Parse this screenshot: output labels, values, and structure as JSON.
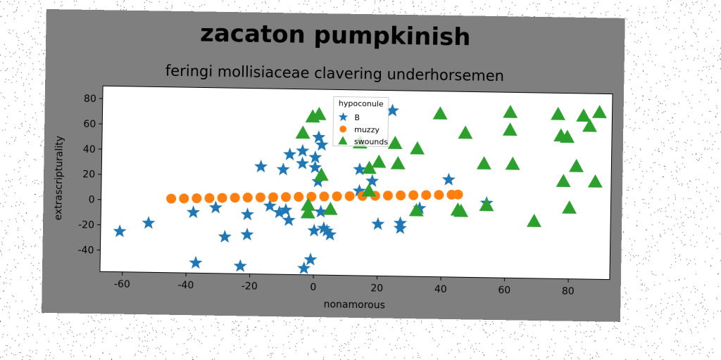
{
  "chart_data": {
    "type": "scatter",
    "title": "zacaton pumpkinish",
    "subtitle": "feringi mollisiaceae clavering underhorsemen",
    "xlabel": "nonamorous",
    "ylabel": "extrascripturality",
    "xlim": [
      -67,
      93
    ],
    "ylim": [
      -57,
      90
    ],
    "xticks": [
      "-60",
      "-40",
      "-20",
      "0",
      "20",
      "40",
      "60",
      "80"
    ],
    "yticks": [
      "-40",
      "-20",
      "0",
      "20",
      "40",
      "60",
      "80"
    ],
    "xtick_values": [
      -60,
      -40,
      -20,
      0,
      20,
      40,
      60,
      80
    ],
    "ytick_values": [
      -40,
      -20,
      0,
      20,
      40,
      60,
      80
    ],
    "legend": {
      "title": "hypoconule",
      "placement": "top-center"
    },
    "colors": {
      "background": "#7f7f7f",
      "plot": "#ffffff"
    },
    "series": [
      {
        "name": "B",
        "marker": "star",
        "color": "#1f77b4",
        "points": [
          [
            -61,
            -25
          ],
          [
            -52,
            -18
          ],
          [
            -38,
            -9
          ],
          [
            -37,
            -49
          ],
          [
            -31,
            -5
          ],
          [
            -28,
            -28
          ],
          [
            -23,
            -51
          ],
          [
            -21,
            -26
          ],
          [
            -21,
            -10
          ],
          [
            -17,
            28
          ],
          [
            -14,
            -3
          ],
          [
            -11,
            -8
          ],
          [
            -10,
            26
          ],
          [
            -9,
            -6
          ],
          [
            -8,
            38
          ],
          [
            -8,
            -14
          ],
          [
            -4,
            41
          ],
          [
            -4,
            31
          ],
          [
            -3,
            -52
          ],
          [
            -1,
            -45
          ],
          [
            0,
            28
          ],
          [
            0,
            36
          ],
          [
            0,
            -22
          ],
          [
            1,
            17
          ],
          [
            2,
            -7
          ],
          [
            3,
            -20
          ],
          [
            4,
            -22
          ],
          [
            5,
            -25
          ],
          [
            14,
            27
          ],
          [
            14,
            10
          ],
          [
            18,
            18
          ],
          [
            20,
            -16
          ],
          [
            24,
            74
          ],
          [
            27,
            -15
          ],
          [
            27,
            -19
          ],
          [
            33,
            -3
          ],
          [
            42,
            20
          ],
          [
            54,
            2
          ],
          [
            1,
            52
          ],
          [
            2,
            46
          ]
        ]
      },
      {
        "name": "muzzy",
        "marker": "circle",
        "color": "#ff7f0e",
        "points": [
          [
            -45,
            1.6
          ],
          [
            -41,
            1.9
          ],
          [
            -37,
            2.2
          ],
          [
            -33,
            2.5
          ],
          [
            -29,
            2.8
          ],
          [
            -25,
            3.1
          ],
          [
            -21,
            3.4
          ],
          [
            -17,
            3.7
          ],
          [
            -13,
            4.0
          ],
          [
            -9,
            4.3
          ],
          [
            -5,
            4.6
          ],
          [
            -1,
            4.9
          ],
          [
            3,
            5.2
          ],
          [
            7,
            5.5
          ],
          [
            11,
            5.8
          ],
          [
            15,
            6.1
          ],
          [
            19,
            6.4
          ],
          [
            23,
            6.7
          ],
          [
            27,
            7.0
          ],
          [
            31,
            7.3
          ],
          [
            35,
            7.6
          ],
          [
            39,
            7.9
          ],
          [
            43,
            8.2
          ],
          [
            45,
            8.4
          ]
        ]
      },
      {
        "name": "swounds",
        "marker": "triangle",
        "color": "#2ca02c",
        "points": [
          [
            -4,
            55
          ],
          [
            -2,
            -2
          ],
          [
            -2,
            -8
          ],
          [
            -1,
            68
          ],
          [
            1,
            70
          ],
          [
            2,
            22
          ],
          [
            5,
            -5
          ],
          [
            14,
            48
          ],
          [
            17,
            28
          ],
          [
            17,
            10
          ],
          [
            20,
            33
          ],
          [
            25,
            48
          ],
          [
            26,
            32
          ],
          [
            32,
            44
          ],
          [
            32,
            -5
          ],
          [
            39,
            72
          ],
          [
            45,
            -4
          ],
          [
            46,
            -5
          ],
          [
            47,
            57
          ],
          [
            53,
            33
          ],
          [
            54,
            0
          ],
          [
            61,
            74
          ],
          [
            61,
            60
          ],
          [
            62,
            33
          ],
          [
            69,
            -12
          ],
          [
            76,
            73
          ],
          [
            77,
            56
          ],
          [
            78,
            20
          ],
          [
            79,
            55
          ],
          [
            80,
            -1
          ],
          [
            82,
            32
          ],
          [
            84,
            72
          ],
          [
            86,
            64
          ],
          [
            88,
            20
          ],
          [
            89,
            75
          ]
        ]
      }
    ]
  }
}
